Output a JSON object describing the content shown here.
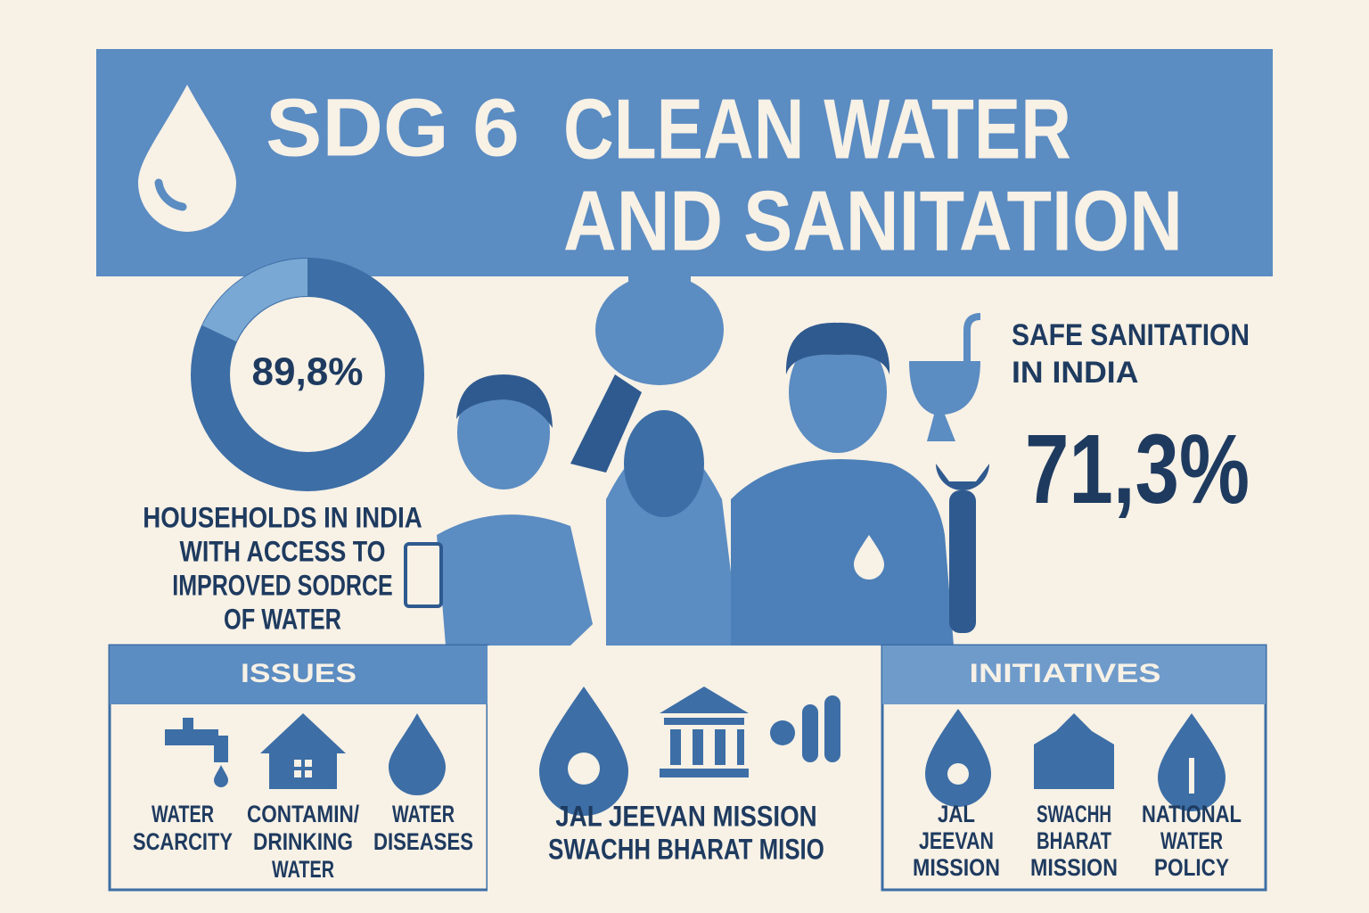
{
  "header": {
    "goal": "SDG 6",
    "title_lines": [
      "CLEAN WATER",
      "AND SANITATION"
    ]
  },
  "water_access": {
    "value": "89,8%",
    "caption_lines": [
      "HOUSEHOLDS IN INDIA",
      "WITH ACCESS TO",
      "IMPROVED SODRCE",
      "OF WATER"
    ]
  },
  "sanitation": {
    "label_lines": [
      "SAFE SANITATION",
      "IN INDIA"
    ],
    "value": "71,3%"
  },
  "issues": {
    "title": "ISSUES",
    "items": [
      {
        "lines": [
          "WATER",
          "SCARCITY"
        ]
      },
      {
        "lines": [
          "CONTAMIN/",
          "DRINKING",
          "WATER"
        ]
      },
      {
        "lines": [
          "WATER",
          "DISEASES"
        ]
      }
    ]
  },
  "programs": {
    "lines": [
      "JAL JEEVAN MISSION",
      "SWACHH BHARAT MISIO"
    ]
  },
  "initiatives": {
    "title": "INITIATIVES",
    "items": [
      {
        "lines": [
          "JAL",
          "JEEVAN",
          "MISSION"
        ]
      },
      {
        "lines": [
          "SWACHH",
          "BHARAT",
          "MISSION"
        ]
      },
      {
        "lines": [
          "NATIONAL",
          "WATER",
          "POLICY"
        ]
      }
    ]
  }
}
